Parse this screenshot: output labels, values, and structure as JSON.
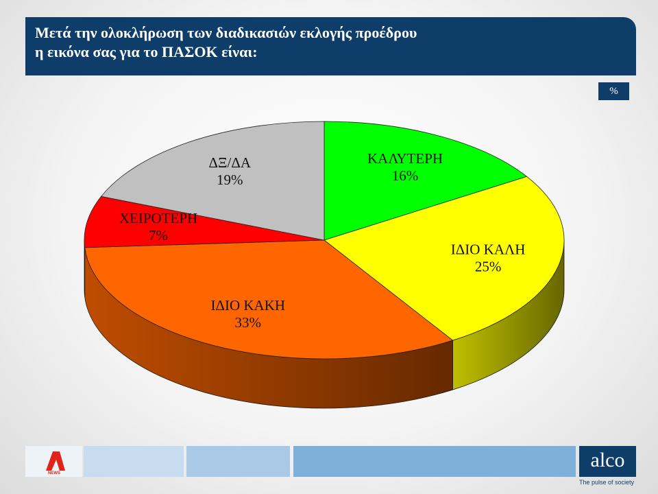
{
  "chart_data": {
    "type": "pie3d",
    "title": [
      "Μετά την ολοκλήρωση των διαδικασιών εκλογής προέδρου",
      "η εικόνα σας για το ΠΑΣΟΚ είναι:"
    ],
    "categories": [
      "ΚΑΛΥΤΕΡΗ",
      "ΙΔΙΟ ΚΑΛΗ",
      "ΙΔΙΟ ΚΑΚΗ",
      "ΧΕΙΡΟΤΕΡΗ",
      "ΔΞ/ΔΑ"
    ],
    "values": [
      16,
      25,
      33,
      7,
      19
    ],
    "value_labels": [
      "16%",
      "25%",
      "33%",
      "7%",
      "19%"
    ],
    "colors": [
      "#00ff00",
      "#ffff00",
      "#ff6600",
      "#ff0000",
      "#c0c0c0"
    ]
  },
  "unit_badge": "%",
  "news_logo": "NEWS",
  "logo": {
    "name": "alco",
    "tagline": "The pulse of society"
  }
}
